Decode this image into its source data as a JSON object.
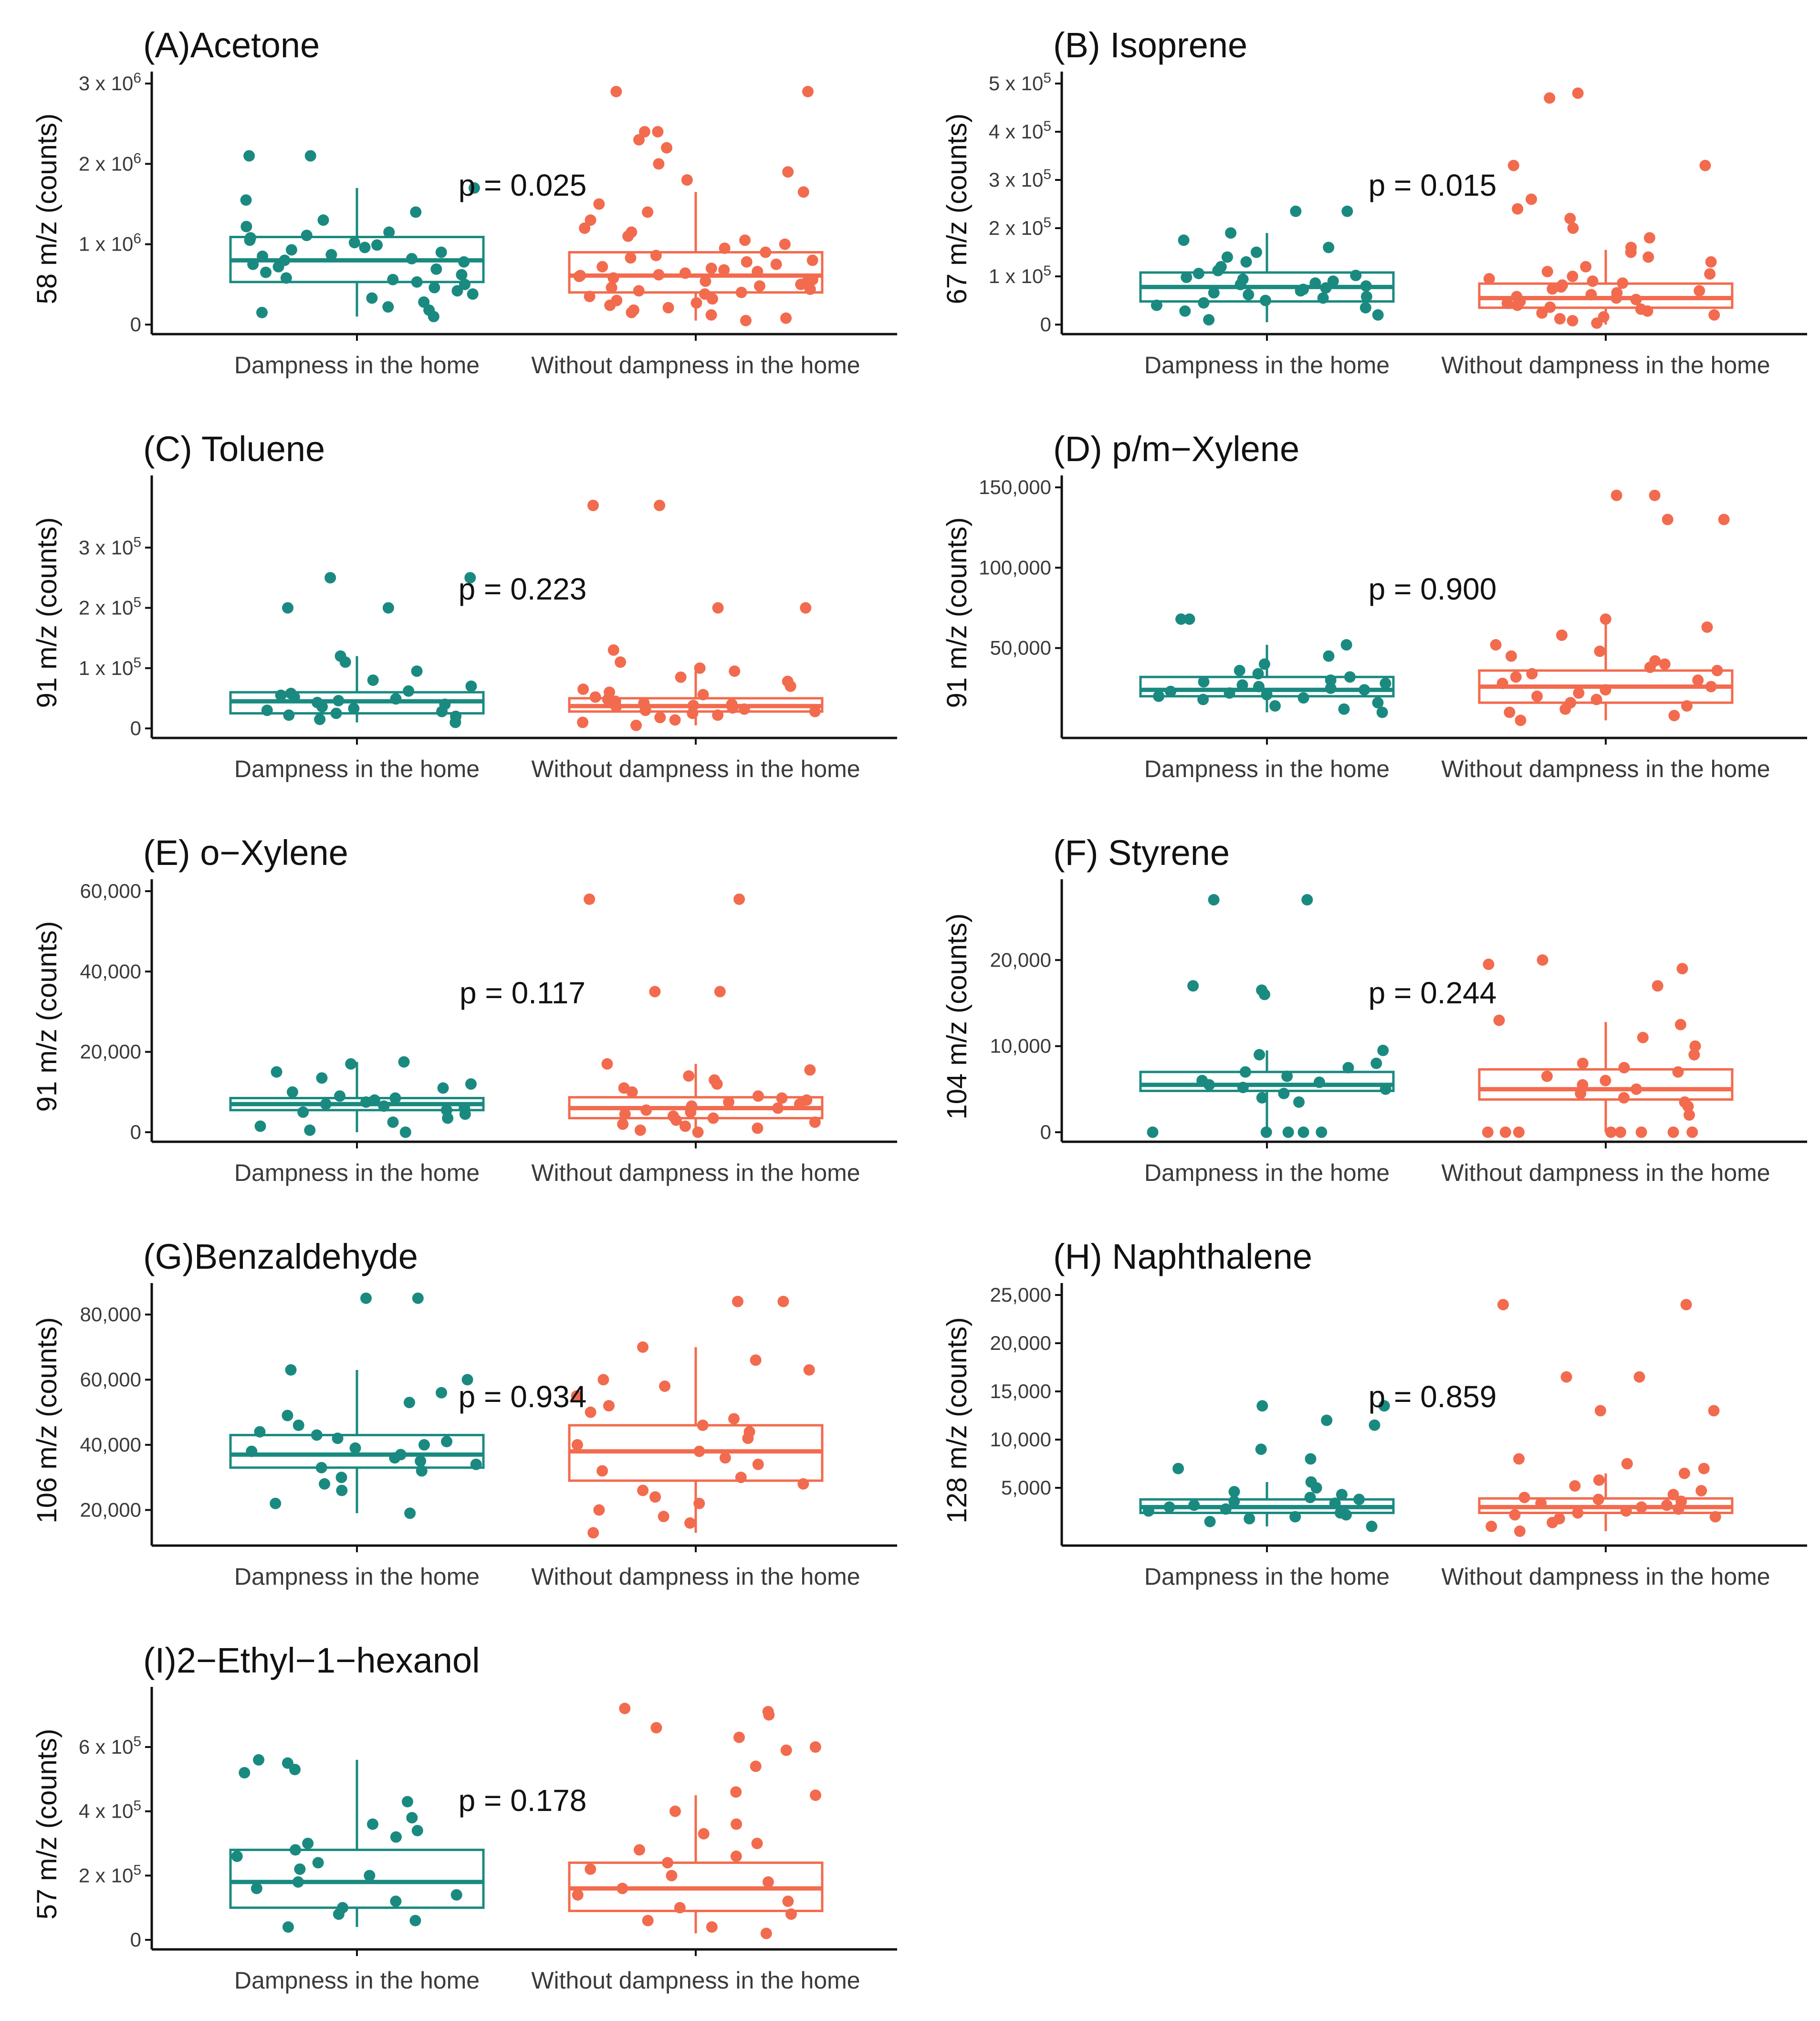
{
  "figure": {
    "colors": {
      "dampness": "#1a8a80",
      "without": "#f26b4e"
    }
  },
  "chart_data": [
    {
      "type": "box",
      "title": "(A)Acetone",
      "ylabel": "58 m/z (counts)",
      "categories": [
        "Dampness in the home",
        "Without dampness in the home"
      ],
      "ylim": [
        0,
        3000000
      ],
      "yticks": [
        0,
        1000000,
        2000000,
        3000000
      ],
      "yticklabels": [
        "0",
        "1 x 10^6",
        "2 x 10^6",
        "3 x 10^6"
      ],
      "p_value": "p = 0.025",
      "groups": [
        {
          "name": "Dampness in the home",
          "q1": 530000,
          "median": 800000,
          "q3": 1090000,
          "whisker_low": 100000,
          "whisker_high": 1700000,
          "points": [
            100000,
            150000,
            180000,
            220000,
            280000,
            330000,
            380000,
            420000,
            460000,
            500000,
            530000,
            560000,
            580000,
            620000,
            650000,
            690000,
            720000,
            750000,
            780000,
            800000,
            820000,
            850000,
            870000,
            900000,
            930000,
            960000,
            990000,
            1020000,
            1050000,
            1080000,
            1110000,
            1150000,
            1220000,
            1300000,
            1400000,
            1550000,
            1700000,
            2100000,
            2100000
          ]
        },
        {
          "name": "Without dampness in the home",
          "q1": 400000,
          "median": 610000,
          "q3": 900000,
          "whisker_low": 50000,
          "whisker_high": 1650000,
          "points": [
            50000,
            80000,
            120000,
            150000,
            180000,
            210000,
            240000,
            270000,
            300000,
            320000,
            350000,
            380000,
            400000,
            420000,
            440000,
            460000,
            480000,
            500000,
            520000,
            540000,
            560000,
            580000,
            600000,
            610000,
            620000,
            640000,
            660000,
            680000,
            700000,
            720000,
            750000,
            780000,
            800000,
            830000,
            860000,
            900000,
            950000,
            1000000,
            1050000,
            1100000,
            1150000,
            1200000,
            1300000,
            1400000,
            1500000,
            1650000,
            1800000,
            1900000,
            2000000,
            2200000,
            2300000,
            2400000,
            2400000,
            2900000,
            2900000
          ]
        }
      ]
    },
    {
      "type": "box",
      "title": "(B) Isoprene",
      "ylabel": "67 m/z (counts)",
      "categories": [
        "Dampness in the home",
        "Without dampness in the home"
      ],
      "ylim": [
        0,
        500000
      ],
      "yticks": [
        0,
        100000,
        200000,
        300000,
        400000,
        500000
      ],
      "yticklabels": [
        "0",
        "1 x 10^5",
        "2 x 10^5",
        "3 x 10^5",
        "4 x 10^5",
        "5 x 10^5"
      ],
      "p_value": "p = 0.015",
      "groups": [
        {
          "name": "Dampness in the home",
          "q1": 48000,
          "median": 78000,
          "q3": 108000,
          "whisker_low": 5000,
          "whisker_high": 190000,
          "points": [
            10000,
            20000,
            28000,
            35000,
            40000,
            45000,
            50000,
            55000,
            58000,
            62000,
            66000,
            70000,
            73000,
            76000,
            80000,
            83000,
            86000,
            90000,
            94000,
            98000,
            102000,
            106000,
            112000,
            120000,
            130000,
            140000,
            150000,
            160000,
            175000,
            190000,
            235000,
            235000
          ]
        },
        {
          "name": "Without dampness in the home",
          "q1": 35000,
          "median": 55000,
          "q3": 85000,
          "whisker_low": 0,
          "whisker_high": 155000,
          "points": [
            3000,
            8000,
            12000,
            16000,
            20000,
            24000,
            28000,
            32000,
            36000,
            40000,
            44000,
            48000,
            52000,
            55000,
            58000,
            62000,
            66000,
            70000,
            74000,
            78000,
            82000,
            86000,
            90000,
            95000,
            100000,
            105000,
            110000,
            120000,
            130000,
            140000,
            150000,
            160000,
            180000,
            200000,
            220000,
            240000,
            260000,
            330000,
            330000,
            470000,
            480000
          ]
        }
      ]
    },
    {
      "type": "box",
      "title": "(C) Toluene",
      "ylabel": "91 m/z (counts)",
      "categories": [
        "Dampness in the home",
        "Without dampness in the home"
      ],
      "ylim": [
        0,
        400000
      ],
      "yticks": [
        0,
        100000,
        200000,
        300000
      ],
      "yticklabels": [
        "0",
        "1 x 10^5",
        "2 x 10^5",
        "3 x 10^5"
      ],
      "p_value": "p = 0.223",
      "groups": [
        {
          "name": "Dampness in the home",
          "q1": 25000,
          "median": 45000,
          "q3": 60000,
          "whisker_low": 10000,
          "whisker_high": 120000,
          "points": [
            10000,
            15000,
            20000,
            22000,
            25000,
            28000,
            30000,
            33000,
            36000,
            40000,
            43000,
            46000,
            49000,
            52000,
            55000,
            58000,
            62000,
            70000,
            80000,
            95000,
            110000,
            120000,
            200000,
            200000,
            250000,
            250000
          ]
        },
        {
          "name": "Without dampness in the home",
          "q1": 28000,
          "median": 37000,
          "q3": 50000,
          "whisker_low": 5000,
          "whisker_high": 95000,
          "points": [
            5000,
            10000,
            14000,
            18000,
            22000,
            25000,
            28000,
            30000,
            32000,
            34000,
            36000,
            38000,
            40000,
            42000,
            45000,
            48000,
            52000,
            56000,
            60000,
            65000,
            70000,
            78000,
            85000,
            95000,
            100000,
            110000,
            130000,
            200000,
            200000,
            370000,
            370000
          ]
        }
      ]
    },
    {
      "type": "box",
      "title": "(D) p/m−Xylene",
      "ylabel": "91 m/z (counts)",
      "categories": [
        "Dampness in the home",
        "Without dampness in the home"
      ],
      "ylim": [
        0,
        150000
      ],
      "yticks": [
        50000,
        100000,
        150000
      ],
      "yticklabels": [
        "50,000",
        "100,000",
        "150,000"
      ],
      "p_value": "p = 0.900",
      "groups": [
        {
          "name": "Dampness in the home",
          "q1": 20000,
          "median": 24000,
          "q3": 32000,
          "whisker_low": 10000,
          "whisker_high": 52000,
          "points": [
            10000,
            12000,
            14000,
            16000,
            18000,
            19000,
            20000,
            21000,
            22000,
            23000,
            24000,
            25000,
            26000,
            27000,
            28000,
            29000,
            30000,
            32000,
            34000,
            36000,
            40000,
            45000,
            52000,
            68000,
            68000
          ]
        },
        {
          "name": "Without dampness in the home",
          "q1": 16000,
          "median": 26000,
          "q3": 36000,
          "whisker_low": 5000,
          "whisker_high": 68000,
          "points": [
            5000,
            8000,
            10000,
            12000,
            14000,
            16000,
            18000,
            20000,
            22000,
            24000,
            26000,
            28000,
            30000,
            32000,
            34000,
            36000,
            38000,
            40000,
            42000,
            45000,
            48000,
            52000,
            58000,
            63000,
            68000,
            130000,
            130000,
            145000,
            145000
          ]
        }
      ]
    },
    {
      "type": "box",
      "title": "(E) o−Xylene",
      "ylabel": "91 m/z (counts)",
      "categories": [
        "Dampness in the home",
        "Without dampness in the home"
      ],
      "ylim": [
        0,
        60000
      ],
      "yticks": [
        0,
        20000,
        40000,
        60000
      ],
      "yticklabels": [
        "0",
        "20,000",
        "40,000",
        "60,000"
      ],
      "p_value": "p = 0.117",
      "groups": [
        {
          "name": "Dampness in the home",
          "q1": 5500,
          "median": 7000,
          "q3": 8500,
          "whisker_low": 0,
          "whisker_high": 17500,
          "points": [
            0,
            500,
            1500,
            2500,
            3500,
            4500,
            5000,
            5500,
            6000,
            6500,
            7000,
            7500,
            8000,
            8500,
            9000,
            10000,
            11000,
            12000,
            13500,
            15000,
            17000,
            17500
          ]
        },
        {
          "name": "Without dampness in the home",
          "q1": 3500,
          "median": 6000,
          "q3": 8700,
          "whisker_low": 0,
          "whisker_high": 17000,
          "points": [
            0,
            500,
            1000,
            1500,
            2000,
            2500,
            3000,
            3500,
            4000,
            4500,
            5000,
            5500,
            6000,
            6500,
            7000,
            7500,
            8000,
            8500,
            9000,
            10000,
            11000,
            12000,
            13000,
            14000,
            15500,
            17000,
            35000,
            35000,
            58000,
            58000
          ]
        }
      ]
    },
    {
      "type": "box",
      "title": "(F) Styrene",
      "ylabel": "104 m/z (counts)",
      "categories": [
        "Dampness in the home",
        "Without dampness in the home"
      ],
      "ylim": [
        0,
        28000
      ],
      "yticks": [
        0,
        10000,
        20000
      ],
      "yticklabels": [
        "0",
        "10,000",
        "20,000"
      ],
      "p_value": "p = 0.244",
      "groups": [
        {
          "name": "Dampness in the home",
          "q1": 4800,
          "median": 5500,
          "q3": 7000,
          "whisker_low": 0,
          "whisker_high": 9500,
          "points": [
            0,
            0,
            0,
            0,
            0,
            3500,
            4000,
            4500,
            5000,
            5200,
            5500,
            5800,
            6000,
            6500,
            7000,
            7500,
            8000,
            9000,
            9500,
            16000,
            16500,
            17000,
            27000,
            27000
          ]
        },
        {
          "name": "Without dampness in the home",
          "q1": 3800,
          "median": 5000,
          "q3": 7300,
          "whisker_low": 0,
          "whisker_high": 12800,
          "points": [
            0,
            0,
            0,
            0,
            0,
            0,
            0,
            0,
            2000,
            3000,
            3500,
            4000,
            4500,
            5000,
            5500,
            6000,
            6500,
            7000,
            7500,
            8000,
            9000,
            10000,
            11000,
            12500,
            13000,
            17000,
            19000,
            19500,
            20000
          ]
        }
      ]
    },
    {
      "type": "box",
      "title": "(G)Benzaldehyde",
      "ylabel": "106 m/z (counts)",
      "categories": [
        "Dampness in the home",
        "Without dampness in the home"
      ],
      "ylim": [
        12000,
        86000
      ],
      "yticks": [
        20000,
        40000,
        60000,
        80000
      ],
      "yticklabels": [
        "20,000",
        "40,000",
        "60,000",
        "80,000"
      ],
      "p_value": "p = 0.934",
      "groups": [
        {
          "name": "Dampness in the home",
          "q1": 33000,
          "median": 37000,
          "q3": 43000,
          "whisker_low": 19000,
          "whisker_high": 63000,
          "points": [
            19000,
            22000,
            26000,
            28000,
            30000,
            32000,
            33000,
            34000,
            35000,
            36000,
            37000,
            38000,
            39000,
            40000,
            41000,
            42000,
            43000,
            44000,
            46000,
            49000,
            53000,
            56000,
            60000,
            63000,
            85000,
            85000
          ]
        },
        {
          "name": "Without dampness in the home",
          "q1": 29000,
          "median": 38000,
          "q3": 46000,
          "whisker_low": 13000,
          "whisker_high": 70000,
          "points": [
            13000,
            16000,
            18000,
            20000,
            22000,
            24000,
            26000,
            28000,
            30000,
            32000,
            34000,
            36000,
            38000,
            40000,
            42000,
            44000,
            46000,
            48000,
            50000,
            52000,
            55000,
            58000,
            60000,
            63000,
            66000,
            70000,
            84000,
            84000
          ]
        }
      ]
    },
    {
      "type": "box",
      "title": "(H) Naphthalene",
      "ylabel": "128 m/z (counts)",
      "categories": [
        "Dampness in the home",
        "Without dampness in the home"
      ],
      "ylim": [
        0,
        25000
      ],
      "yticks": [
        5000,
        10000,
        15000,
        20000,
        25000
      ],
      "yticklabels": [
        "5,000",
        "10,000",
        "15,000",
        "20,000",
        "25,000"
      ],
      "p_value": "p = 0.859",
      "groups": [
        {
          "name": "Dampness in the home",
          "q1": 2400,
          "median": 3000,
          "q3": 3800,
          "whisker_low": 1000,
          "whisker_high": 5600,
          "points": [
            1000,
            1500,
            1800,
            2000,
            2200,
            2400,
            2600,
            2800,
            3000,
            3200,
            3400,
            3600,
            3800,
            4000,
            4300,
            4600,
            5000,
            5600,
            7000,
            8000,
            9000,
            11500,
            12000,
            13500,
            13500
          ]
        },
        {
          "name": "Without dampness in the home",
          "q1": 2400,
          "median": 3000,
          "q3": 3900,
          "whisker_low": 500,
          "whisker_high": 6500,
          "points": [
            500,
            1000,
            1400,
            1800,
            2000,
            2200,
            2400,
            2600,
            2800,
            3000,
            3200,
            3400,
            3600,
            3800,
            4000,
            4300,
            4700,
            5200,
            5800,
            6500,
            7000,
            7500,
            8000,
            13000,
            13000,
            16500,
            16500,
            24000,
            24000
          ]
        }
      ]
    },
    {
      "type": "box",
      "title": "(I)2−Ethyl−1−hexanol",
      "ylabel": "57 m/z (counts)",
      "categories": [
        "Dampness in the home",
        "Without dampness in the home"
      ],
      "ylim": [
        0,
        750000
      ],
      "yticks": [
        0,
        200000,
        400000,
        600000
      ],
      "yticklabels": [
        "0",
        "2 x 10^5",
        "4 x 10^5",
        "6 x 10^5"
      ],
      "p_value": "p = 0.178",
      "groups": [
        {
          "name": "Dampness in the home",
          "q1": 100000,
          "median": 180000,
          "q3": 280000,
          "whisker_low": 40000,
          "whisker_high": 560000,
          "points": [
            40000,
            60000,
            80000,
            100000,
            120000,
            140000,
            160000,
            180000,
            200000,
            220000,
            240000,
            260000,
            280000,
            300000,
            320000,
            340000,
            360000,
            380000,
            430000,
            520000,
            530000,
            550000,
            560000
          ]
        },
        {
          "name": "Without dampness in the home",
          "q1": 90000,
          "median": 160000,
          "q3": 240000,
          "whisker_low": 20000,
          "whisker_high": 450000,
          "points": [
            20000,
            40000,
            60000,
            80000,
            100000,
            120000,
            140000,
            160000,
            180000,
            200000,
            220000,
            240000,
            260000,
            280000,
            300000,
            330000,
            360000,
            400000,
            450000,
            460000,
            540000,
            590000,
            600000,
            630000,
            660000,
            700000,
            710000,
            720000
          ]
        }
      ]
    }
  ]
}
